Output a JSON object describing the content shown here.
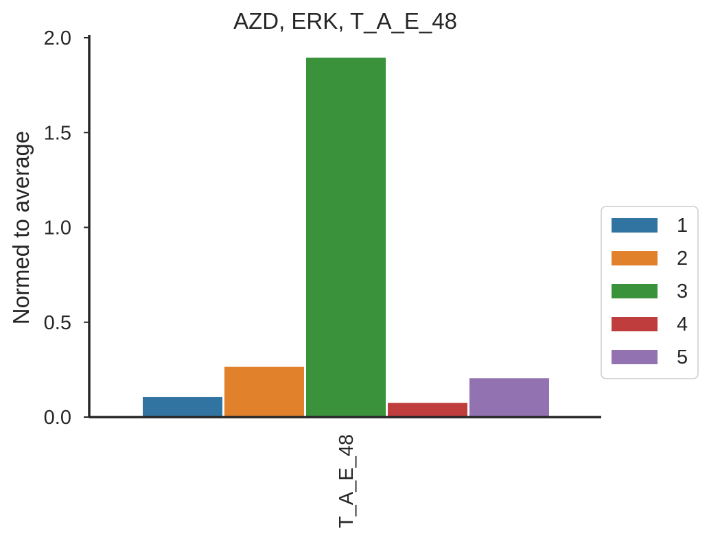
{
  "chart_data": {
    "type": "bar",
    "title": "AZD, ERK, T_A_E_48",
    "xlabel": "",
    "ylabel": "Normed to average",
    "categories": [
      "T_A_E_48"
    ],
    "series": [
      {
        "name": "1",
        "color": "#3274a1",
        "values": [
          0.105
        ]
      },
      {
        "name": "2",
        "color": "#e1812c",
        "values": [
          0.265
        ]
      },
      {
        "name": "3",
        "color": "#3a923a",
        "values": [
          1.895
        ]
      },
      {
        "name": "4",
        "color": "#c03d3e",
        "values": [
          0.075
        ]
      },
      {
        "name": "5",
        "color": "#9372b2",
        "values": [
          0.205
        ]
      }
    ],
    "ylim": [
      0,
      2.0
    ],
    "yticks": [
      "0.0",
      "0.5",
      "1.0",
      "1.5",
      "2.0"
    ],
    "grid": false,
    "legend_position": "right"
  }
}
